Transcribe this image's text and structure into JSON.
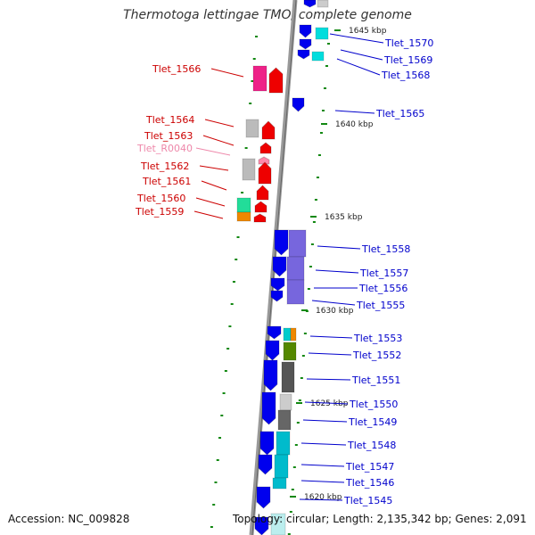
{
  "title": "Thermotoga lettingae TMO, complete genome",
  "footer": {
    "accession": "Accession: NC_009828",
    "topology": "Topology: circular; Length: 2,135,342 bp; Genes: 2,091"
  },
  "colors": {
    "backbone": "#888888",
    "forward_label": "#0000cc",
    "reverse_label": "#cc0000",
    "rna_label": "#ee88aa",
    "tick": "#118811",
    "gene_forward": "#0000ee",
    "gene_reverse": "#ee0000"
  },
  "kbp_markers": [
    "1645 kbp",
    "1640 kbp",
    "1635 kbp",
    "1630 kbp",
    "1625 kbp",
    "1620 kbp"
  ],
  "labels_left": [
    "Tlet_1566",
    "Tlet_1564",
    "Tlet_1563",
    "Tlet_R0040",
    "Tlet_1562",
    "Tlet_1561",
    "Tlet_1560",
    "Tlet_1559"
  ],
  "labels_right": [
    "Tlet_1570",
    "Tlet_1569",
    "Tlet_1568",
    "Tlet_1565",
    "Tlet_1558",
    "Tlet_1557",
    "Tlet_1556",
    "Tlet_1555",
    "Tlet_1553",
    "Tlet_1552",
    "Tlet_1551",
    "Tlet_1550",
    "Tlet_1549",
    "Tlet_1548",
    "Tlet_1547",
    "Tlet_1546",
    "Tlet_1545"
  ]
}
